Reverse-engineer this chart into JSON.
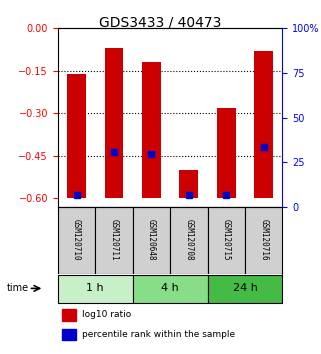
{
  "title": "GDS3433 / 40473",
  "samples": [
    "GSM120710",
    "GSM120711",
    "GSM120648",
    "GSM120708",
    "GSM120715",
    "GSM120716"
  ],
  "groups": [
    {
      "label": "1 h",
      "indices": [
        0,
        1
      ]
    },
    {
      "label": "4 h",
      "indices": [
        2,
        3
      ]
    },
    {
      "label": "24 h",
      "indices": [
        4,
        5
      ]
    }
  ],
  "group_colors": [
    "#c8f0c8",
    "#88dd88",
    "#44bb44"
  ],
  "log10_ratio": [
    -0.16,
    -0.07,
    -0.12,
    -0.5,
    -0.28,
    -0.08
  ],
  "percentile_rank": [
    2,
    27,
    26,
    2,
    2,
    30
  ],
  "bar_bottom": -0.6,
  "ylim_left": [
    -0.63,
    0.0
  ],
  "yticks_left": [
    0.0,
    -0.15,
    -0.3,
    -0.45,
    -0.6
  ],
  "yticks_right": [
    0,
    25,
    50,
    75,
    100
  ],
  "yticklabels_right": [
    "0",
    "25",
    "50",
    "75",
    "100%"
  ],
  "bar_color": "#cc0000",
  "dot_color": "#0000cc",
  "bar_width": 0.5,
  "grid_lines": [
    -0.15,
    -0.3,
    -0.45
  ],
  "legend": [
    {
      "label": "log10 ratio",
      "color": "#cc0000"
    },
    {
      "label": "percentile rank within the sample",
      "color": "#0000cc"
    }
  ]
}
